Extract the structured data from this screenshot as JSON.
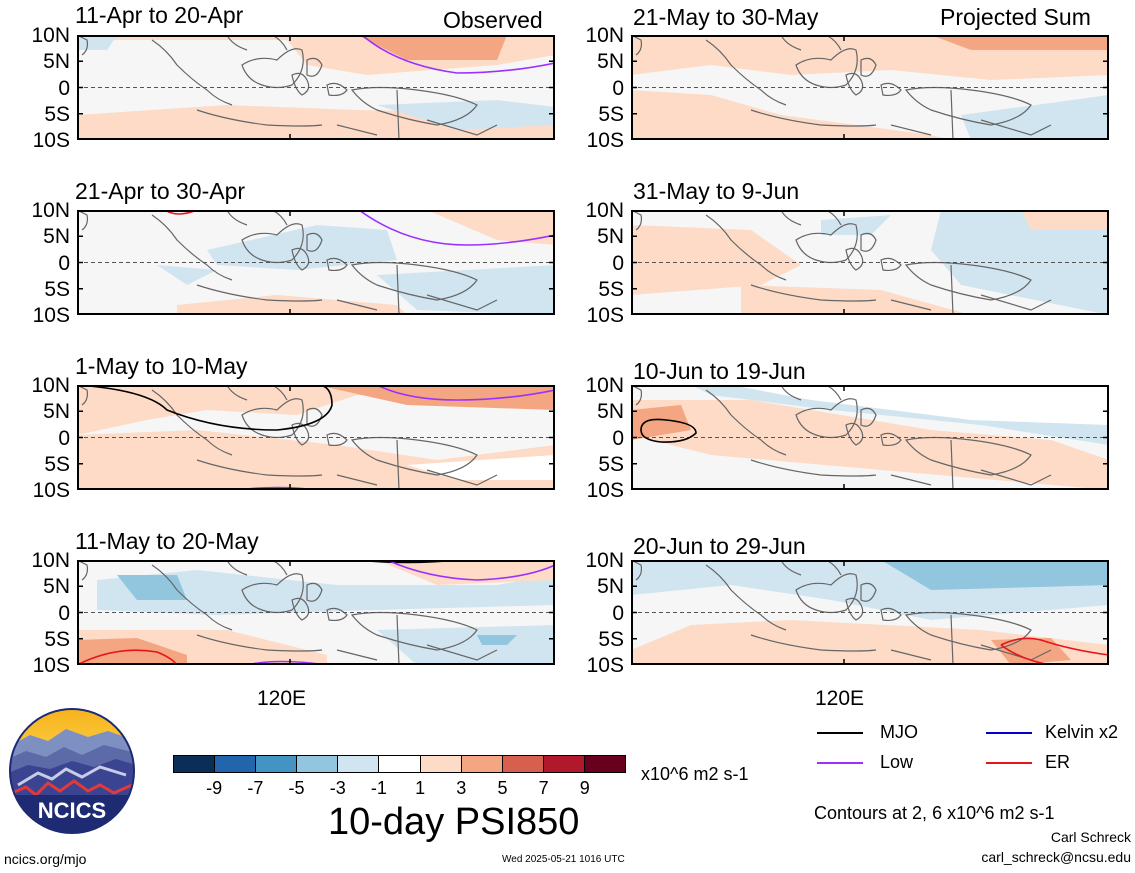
{
  "columns": {
    "left_label": "Observed",
    "right_label": "Projected Sum"
  },
  "panels": [
    {
      "title": "11-Apr to 20-Apr",
      "column": "left"
    },
    {
      "title": "21-Apr to 30-Apr",
      "column": "left"
    },
    {
      "title": "1-May to 10-May",
      "column": "left"
    },
    {
      "title": "11-May to 20-May",
      "column": "left"
    },
    {
      "title": "21-May to 30-May",
      "column": "right"
    },
    {
      "title": "31-May to 9-Jun",
      "column": "right"
    },
    {
      "title": "10-Jun to 19-Jun",
      "column": "right"
    },
    {
      "title": "20-Jun to 29-Jun",
      "column": "right"
    }
  ],
  "axes": {
    "lat_labels": [
      "10N",
      "5N",
      "0",
      "5S",
      "10S"
    ],
    "lon_label": "120E"
  },
  "colorbar": {
    "ticks": [
      "-9",
      "-7",
      "-5",
      "-3",
      "-1",
      "1",
      "3",
      "5",
      "7",
      "9"
    ],
    "colors": [
      "#0b2e59",
      "#2166ac",
      "#4393c3",
      "#92c5de",
      "#d1e5f0",
      "#ffffff",
      "#fddbc7",
      "#f4a582",
      "#d6604d",
      "#b2182b",
      "#67001f"
    ],
    "units": "x10^6 m2 s-1"
  },
  "title": "10-day PSI850",
  "legend": [
    {
      "label": "MJO",
      "color": "#000000"
    },
    {
      "label": "Kelvin x2",
      "color": "#0000cc"
    },
    {
      "label": "Low",
      "color": "#9b30ff"
    },
    {
      "label": "ER",
      "color": "#e8141c"
    }
  ],
  "contour_note": "Contours at 2, 6 x10^6 m2 s-1",
  "author": {
    "name": "Carl Schreck",
    "email": "carl_schreck@ncsu.edu"
  },
  "footer": {
    "url": "ncics.org/mjo",
    "timestamp": "Wed 2025-05-21 1016 UTC"
  },
  "logo_text": "NCICS"
}
